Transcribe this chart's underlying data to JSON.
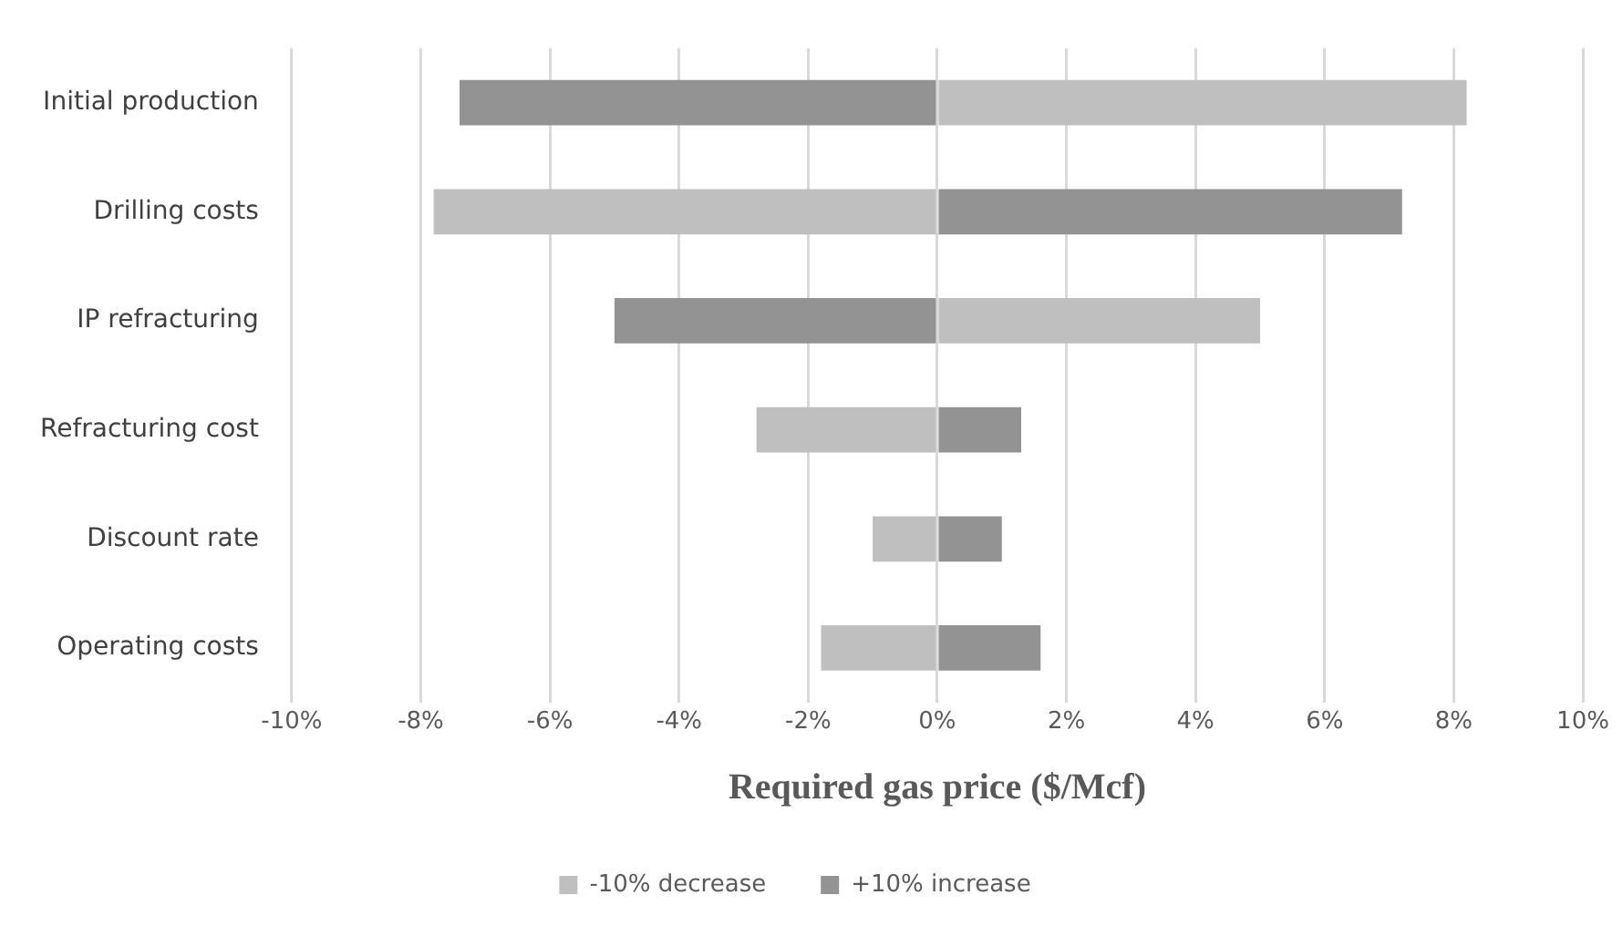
{
  "chart_data": {
    "type": "bar",
    "orientation": "horizontal",
    "stacked": true,
    "xlabel": "Required gas price ($/Mcf)",
    "categories": [
      "Initial production",
      "Drilling costs",
      "IP refracturing",
      "Refracturing cost",
      "Discount rate",
      "Operating costs"
    ],
    "series": [
      {
        "name": "-10% decrease",
        "color": "#bfbfbf",
        "values": [
          8.2,
          -7.8,
          5.0,
          -2.8,
          -1.0,
          -1.8
        ]
      },
      {
        "name": "+10% increase",
        "color": "#939393",
        "values": [
          -7.4,
          7.2,
          -5.0,
          1.3,
          1.0,
          1.6
        ]
      }
    ],
    "xlim": [
      -10,
      10
    ],
    "xticks": [
      {
        "value": -10,
        "label": "-10%"
      },
      {
        "value": -8,
        "label": "-8%"
      },
      {
        "value": -6,
        "label": "-6%"
      },
      {
        "value": -4,
        "label": "-4%"
      },
      {
        "value": -2,
        "label": "-2%"
      },
      {
        "value": 0,
        "label": "0%"
      },
      {
        "value": 2,
        "label": "2%"
      },
      {
        "value": 4,
        "label": "4%"
      },
      {
        "value": 6,
        "label": "6%"
      },
      {
        "value": 8,
        "label": "8%"
      },
      {
        "value": 10,
        "label": "10%"
      }
    ],
    "grid": "x",
    "legend": "bottom"
  }
}
